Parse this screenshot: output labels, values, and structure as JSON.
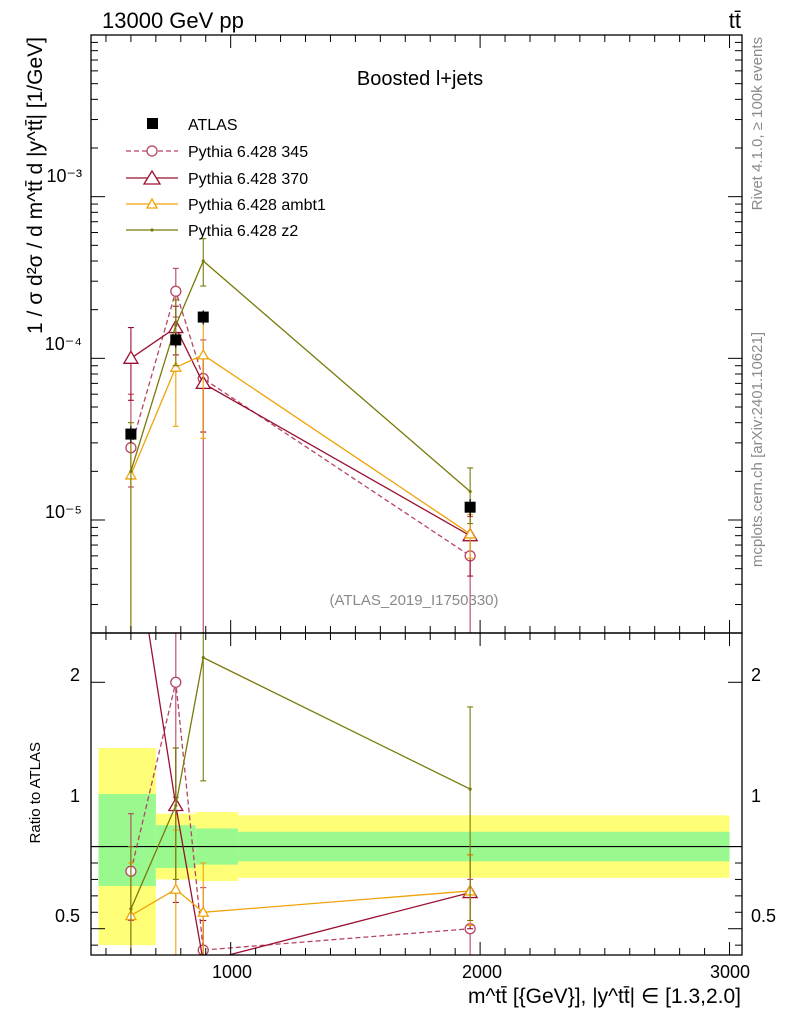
{
  "header": {
    "left": "13000 GeV pp",
    "right": "tt̄"
  },
  "side_labels": {
    "rivet": "Rivet 4.1.0, ≥ 100k events",
    "mcplots": "mcplots.cern.ch [arXiv:2401.10621]"
  },
  "chart_data": {
    "type": "line",
    "title": "Boosted l+jets",
    "analysis_tag": "(ATLAS_2019_I1750330)",
    "ylabel": "1 / σ d²σ / d m^tt̄ d |y^tt̄| [1/GeV]",
    "ratio_ylabel": "Ratio to ATLAS",
    "xlabel": "m^tt̄ [{GeV}], |y^tt̄| ∈ [1.3,2.0]",
    "xlim": [
      440,
      3050
    ],
    "ylim": [
      2e-06,
      0.01
    ],
    "ratio_ylim": [
      0.34,
      2.3
    ],
    "x_ticks": [
      "1000",
      "2000",
      "3000"
    ],
    "y_ticks": [
      "10⁻⁵",
      "10⁻⁴",
      "10⁻³"
    ],
    "ratio_ticks": [
      "0.5",
      "1",
      "2"
    ],
    "data": {
      "name": "ATLAS",
      "color": "#000000",
      "x": [
        600,
        780,
        890,
        1960
      ],
      "y": [
        3.4e-05,
        0.00013,
        0.00018,
        1.2e-05
      ],
      "yerr": [
        4e-06,
        1.3e-05,
        1.8e-05,
        1.5e-06
      ],
      "bins": [
        [
          470,
          700
        ],
        [
          700,
          860
        ],
        [
          860,
          1030
        ],
        [
          1030,
          3000
        ]
      ],
      "band_green": [
        [
          0.76,
          1.32
        ],
        [
          0.87,
          1.13
        ],
        [
          0.89,
          1.11
        ],
        [
          0.91,
          1.09
        ]
      ],
      "band_yellow": [
        [
          0.4,
          1.6
        ],
        [
          0.8,
          1.2
        ],
        [
          0.79,
          1.21
        ],
        [
          0.81,
          1.19
        ]
      ]
    },
    "series": [
      {
        "name": "Pythia 6.428 345",
        "color": "#b5455f",
        "marker": "circle",
        "dashed": true,
        "x": [
          600,
          780,
          890,
          1960
        ],
        "y": [
          2.8e-05,
          0.00026,
          7.5e-05,
          6e-06
        ],
        "ylo": [
          1.6e-05,
          0.00018,
          2e-06,
          2e-06
        ],
        "yhi": [
          6e-05,
          0.00036,
          0.00013,
          1.05e-05
        ],
        "ratio": [
          0.85,
          2.0,
          0.37,
          0.5
        ],
        "rlo": [
          0.55,
          1.3,
          0.34,
          0.34
        ],
        "rhi": [
          1.2,
          2.3,
          0.75,
          0.8
        ]
      },
      {
        "name": "Pythia 6.428 370",
        "color": "#9a1030",
        "marker": "triangle",
        "dashed": false,
        "x": [
          600,
          780,
          890,
          1960
        ],
        "y": [
          0.0001,
          0.000155,
          7e-05,
          8e-06
        ],
        "ylo": [
          5.5e-05,
          0.000105,
          3.5e-05,
          4.5e-06
        ],
        "yhi": [
          0.000155,
          0.00021,
          0.000105,
          1.15e-05
        ],
        "ratio": [
          3.0,
          1.25,
          0.3,
          0.72
        ],
        "rlo": [
          2.5,
          0.66,
          0.2,
          0.5
        ],
        "rhi": [
          3.5,
          1.6,
          0.55,
          0.95
        ]
      },
      {
        "name": "Pythia 6.428 ambt1",
        "color": "#f0a30a",
        "marker": "triangle-small",
        "dashed": false,
        "x": [
          600,
          780,
          890,
          1960
        ],
        "y": [
          1.9e-05,
          8.8e-05,
          0.000105,
          8.2e-06
        ],
        "ylo": [
          2e-06,
          3.8e-05,
          3.2e-05,
          5.8e-06
        ],
        "yhi": [
          3.6e-05,
          0.000135,
          0.00017,
          1.08e-05
        ],
        "ratio": [
          0.58,
          0.74,
          0.6,
          0.73
        ],
        "rlo": [
          0.34,
          0.34,
          0.34,
          0.52
        ],
        "rhi": [
          0.9,
          1.1,
          0.9,
          0.95
        ]
      },
      {
        "name": "Pythia 6.428 z2",
        "color": "#7a7a0a",
        "marker": "dot",
        "dashed": false,
        "x": [
          600,
          780,
          890,
          1960
        ],
        "y": [
          2e-05,
          0.00016,
          0.0004,
          1.5e-05
        ],
        "ylo": [
          2e-06,
          9e-05,
          0.00028,
          9.5e-06
        ],
        "yhi": [
          4e-05,
          0.00023,
          0.00055,
          2.1e-05
        ],
        "ratio": [
          0.62,
          1.25,
          2.15,
          1.35
        ],
        "rlo": [
          0.34,
          0.8,
          1.4,
          0.55
        ],
        "rhi": [
          1.0,
          1.6,
          2.3,
          1.85
        ]
      }
    ]
  }
}
